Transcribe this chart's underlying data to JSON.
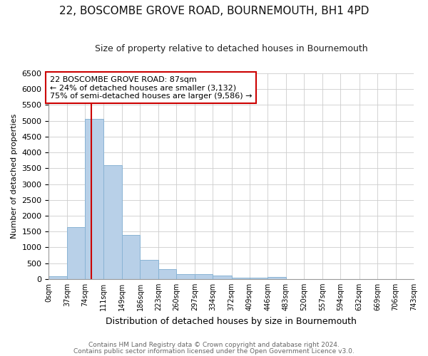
{
  "title_line1": "22, BOSCOMBE GROVE ROAD, BOURNEMOUTH, BH1 4PD",
  "title_line2": "Size of property relative to detached houses in Bournemouth",
  "xlabel": "Distribution of detached houses by size in Bournemouth",
  "ylabel": "Number of detached properties",
  "bin_edges": [
    0,
    37,
    74,
    111,
    149,
    186,
    223,
    260,
    297,
    334,
    372,
    409,
    446,
    483,
    520,
    557,
    594,
    632,
    669,
    706,
    743
  ],
  "bin_counts": [
    75,
    1640,
    5060,
    3590,
    1400,
    610,
    300,
    160,
    150,
    100,
    50,
    30,
    55,
    0,
    0,
    0,
    0,
    0,
    0,
    0
  ],
  "bar_color": "#b8d0e8",
  "bar_edge_color": "#8ab4d4",
  "property_size": 87,
  "property_line_color": "#cc0000",
  "annotation_text": "22 BOSCOMBE GROVE ROAD: 87sqm\n← 24% of detached houses are smaller (3,132)\n75% of semi-detached houses are larger (9,586) →",
  "annotation_box_color": "#ffffff",
  "annotation_box_edge_color": "#cc0000",
  "ylim": [
    0,
    6500
  ],
  "yticks": [
    0,
    500,
    1000,
    1500,
    2000,
    2500,
    3000,
    3500,
    4000,
    4500,
    5000,
    5500,
    6000,
    6500
  ],
  "tick_labels": [
    "0sqm",
    "37sqm",
    "74sqm",
    "111sqm",
    "149sqm",
    "186sqm",
    "223sqm",
    "260sqm",
    "297sqm",
    "334sqm",
    "372sqm",
    "409sqm",
    "446sqm",
    "483sqm",
    "520sqm",
    "557sqm",
    "594sqm",
    "632sqm",
    "669sqm",
    "706sqm",
    "743sqm"
  ],
  "footnote1": "Contains HM Land Registry data © Crown copyright and database right 2024.",
  "footnote2": "Contains public sector information licensed under the Open Government Licence v3.0.",
  "background_color": "#ffffff",
  "grid_color": "#cccccc",
  "title1_fontsize": 11,
  "title2_fontsize": 9,
  "xlabel_fontsize": 9,
  "ylabel_fontsize": 8,
  "footnote_fontsize": 6.5,
  "annotation_fontsize": 8
}
